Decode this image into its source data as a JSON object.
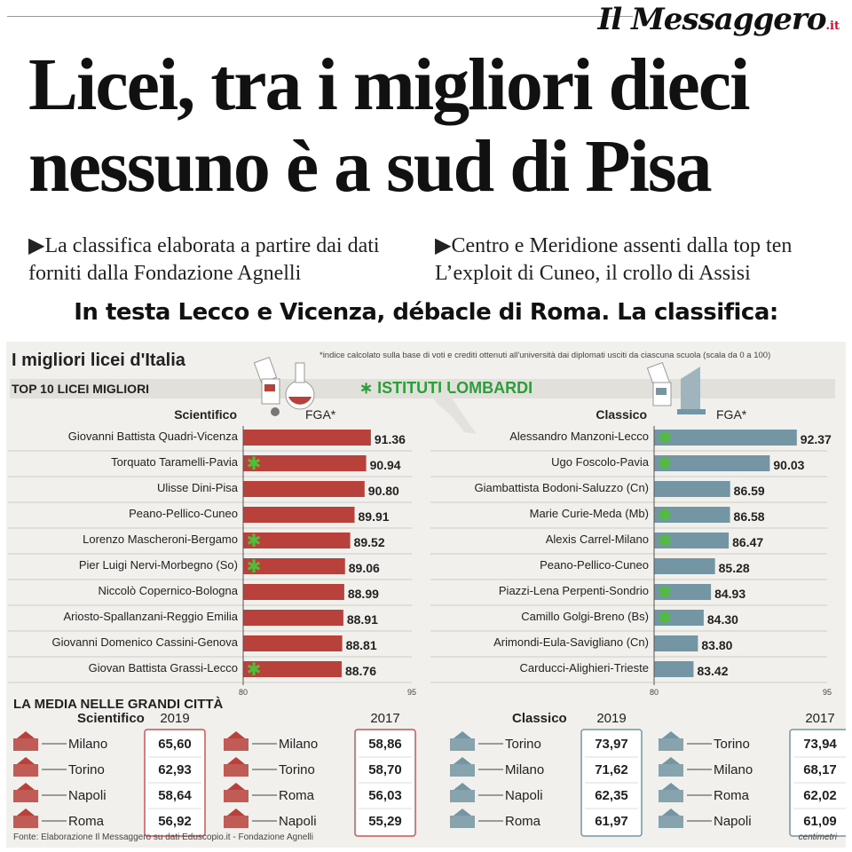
{
  "masthead": {
    "name": "Il Messaggero",
    "tld": ".it"
  },
  "headline": {
    "line1": "Licei, tra i migliori dieci",
    "line2": "nessuno è a sud di Pisa"
  },
  "subheads": [
    {
      "marker": "▶",
      "text": "La classifica elaborata a partire dai dati forniti dalla Fondazione Agnelli"
    },
    {
      "marker": "▶",
      "text": "Centro e Meridione assenti dalla top ten L’exploit di Cuneo, il crollo di Assisi"
    }
  ],
  "overlay_caption": "In testa Lecco e Vicenza, débacle di Roma. La classifica:",
  "infographic": {
    "title": "I migliori licei d'Italia",
    "note": "*indice calcolato sulla base di voti e crediti ottenuti all'università dai diplomati usciti da ciascuna scuola (scala da 0 a 100)",
    "top10_label": "TOP 10 LICEI MIGLIORI",
    "lombardi_label": "∗ ISTITUTI LOMBARDI",
    "media_title": "LA MEDIA NELLE GRANDI CITTÀ",
    "source": "Fonte: Elaborazione Il Messaggero su dati Eduscopio.it - Fondazione Agnelli",
    "credit": "centimetri",
    "colors": {
      "scientifico": "#b8413c",
      "classico": "#7495a3",
      "lombardi_star": "#4fbf3a",
      "box_border": "#c55"
    }
  },
  "chart_data": [
    {
      "type": "bar",
      "orientation": "horizontal",
      "group": "Scientifico",
      "metric": "FGA*",
      "xlim": [
        80,
        95
      ],
      "tick_labels": [
        "80",
        "95"
      ],
      "categories": [
        "Giovanni Battista Quadri-Vicenza",
        "Torquato Taramelli-Pavia",
        "Ulisse Dini-Pisa",
        "Peano-Pellico-Cuneo",
        "Lorenzo Mascheroni-Bergamo",
        "Pier Luigi Nervi-Morbegno (So)",
        "Niccolò Copernico-Bologna",
        "Ariosto-Spallanzani-Reggio Emilia",
        "Giovanni Domenico Cassini-Genova",
        "Giovan Battista Grassi-Lecco"
      ],
      "values": [
        91.36,
        90.94,
        90.8,
        89.91,
        89.52,
        89.06,
        88.99,
        88.91,
        88.81,
        88.76
      ],
      "value_labels": [
        "91.36",
        "90.94",
        "90.80",
        "89.91",
        "89.52",
        "89.06",
        "88.99",
        "88.91",
        "88.81",
        "88.76"
      ],
      "lombardi": [
        false,
        true,
        false,
        false,
        true,
        true,
        false,
        false,
        false,
        true
      ]
    },
    {
      "type": "bar",
      "orientation": "horizontal",
      "group": "Classico",
      "metric": "FGA*",
      "xlim": [
        80,
        95
      ],
      "tick_labels": [
        "80",
        "95"
      ],
      "categories": [
        "Alessandro Manzoni-Lecco",
        "Ugo Foscolo-Pavia",
        "Giambattista Bodoni-Saluzzo (Cn)",
        "Marie Curie-Meda (Mb)",
        "Alexis Carrel-Milano",
        "Peano-Pellico-Cuneo",
        "Piazzi-Lena Perpenti-Sondrio",
        "Camillo Golgi-Breno (Bs)",
        "Arimondi-Eula-Savigliano (Cn)",
        "Carducci-Alighieri-Trieste"
      ],
      "values": [
        92.37,
        90.03,
        86.59,
        86.58,
        86.47,
        85.28,
        84.93,
        84.3,
        83.8,
        83.42
      ],
      "value_labels": [
        "92.37",
        "90.03",
        "86.59",
        "86.58",
        "86.47",
        "85.28",
        "84.93",
        "84.30",
        "83.80",
        "83.42"
      ],
      "lombardi": [
        true,
        true,
        false,
        true,
        true,
        false,
        true,
        true,
        false,
        false
      ]
    },
    {
      "type": "table",
      "group": "Scientifico",
      "blocks": [
        {
          "year": "2019",
          "rows": [
            {
              "city": "Milano",
              "value": "65,60"
            },
            {
              "city": "Torino",
              "value": "62,93"
            },
            {
              "city": "Napoli",
              "value": "58,64"
            },
            {
              "city": "Roma",
              "value": "56,92"
            }
          ]
        },
        {
          "year": "2017",
          "rows": [
            {
              "city": "Milano",
              "value": "58,86"
            },
            {
              "city": "Torino",
              "value": "58,70"
            },
            {
              "city": "Roma",
              "value": "56,03"
            },
            {
              "city": "Napoli",
              "value": "55,29"
            }
          ]
        }
      ]
    },
    {
      "type": "table",
      "group": "Classico",
      "blocks": [
        {
          "year": "2019",
          "rows": [
            {
              "city": "Torino",
              "value": "73,97"
            },
            {
              "city": "Milano",
              "value": "71,62"
            },
            {
              "city": "Napoli",
              "value": "62,35"
            },
            {
              "city": "Roma",
              "value": "61,97"
            }
          ]
        },
        {
          "year": "2017",
          "rows": [
            {
              "city": "Torino",
              "value": "73,94"
            },
            {
              "city": "Milano",
              "value": "68,17"
            },
            {
              "city": "Roma",
              "value": "62,02"
            },
            {
              "city": "Napoli",
              "value": "61,09"
            }
          ]
        }
      ]
    }
  ]
}
